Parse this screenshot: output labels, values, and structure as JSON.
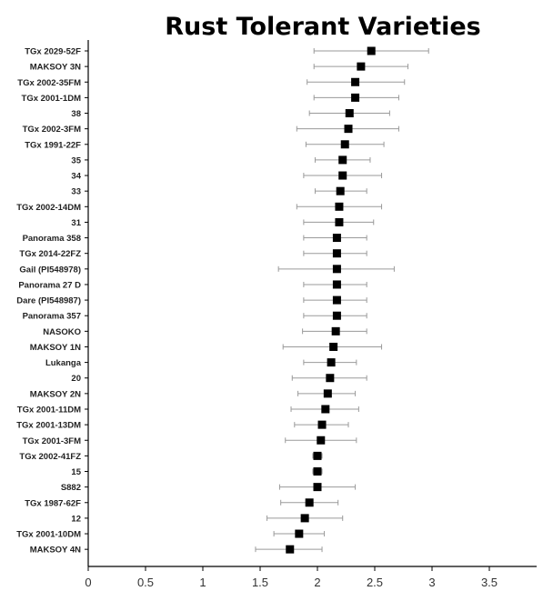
{
  "chart_data": {
    "type": "scatter",
    "title": "Rust Tolerant Varieties",
    "xlabel": "",
    "ylabel": "",
    "xlim": [
      0,
      4
    ],
    "x_ticks": [
      "0",
      "0.5",
      "1",
      "1.5",
      "2",
      "2.5",
      "3",
      "3.5"
    ],
    "grid": false,
    "legend": "none",
    "colors": {
      "marker": "#000000",
      "error_bar": "#9a9a9a",
      "axis": "#000000"
    },
    "categories": [
      "TGx 2029-52F",
      "MAKSOY 3N",
      "TGx 2002-35FM",
      "TGx 2001-1DM",
      "38",
      "TGx 2002-3FM",
      "TGx 1991-22F",
      "35",
      "34",
      "33",
      "TGx 2002-14DM",
      "31",
      "Panorama 358",
      "TGx 2014-22FZ",
      "Gail (PI548978)",
      "Panorama 27 D",
      "Dare (PI548987)",
      "Panorama 357",
      "NASOKO",
      "MAKSOY 1N",
      "Lukanga",
      "20",
      "MAKSOY 2N",
      "TGx 2001-11DM",
      "TGx 2001-13DM",
      "TGx 2001-3FM",
      "TGx 2002-41FZ",
      "15",
      "S882",
      "TGx 1987-62F",
      "12",
      "TGx 2001-10DM",
      "MAKSOY 4N"
    ],
    "values": [
      2.47,
      2.38,
      2.33,
      2.33,
      2.28,
      2.27,
      2.24,
      2.22,
      2.22,
      2.2,
      2.19,
      2.19,
      2.17,
      2.17,
      2.17,
      2.17,
      2.17,
      2.17,
      2.16,
      2.14,
      2.12,
      2.11,
      2.09,
      2.07,
      2.04,
      2.03,
      2.0,
      2.0,
      2.0,
      1.93,
      1.89,
      1.84,
      1.76
    ],
    "error_low": [
      1.97,
      1.97,
      1.91,
      1.97,
      1.93,
      1.82,
      1.9,
      1.98,
      1.88,
      1.98,
      1.82,
      1.88,
      1.88,
      1.88,
      1.66,
      1.88,
      1.88,
      1.88,
      1.87,
      1.7,
      1.88,
      1.78,
      1.83,
      1.77,
      1.8,
      1.72,
      1.96,
      1.96,
      1.67,
      1.68,
      1.56,
      1.62,
      1.46
    ],
    "error_high": [
      2.97,
      2.79,
      2.76,
      2.71,
      2.63,
      2.71,
      2.58,
      2.46,
      2.56,
      2.43,
      2.56,
      2.49,
      2.43,
      2.43,
      2.67,
      2.43,
      2.43,
      2.43,
      2.43,
      2.56,
      2.34,
      2.43,
      2.33,
      2.36,
      2.27,
      2.34,
      2.04,
      2.04,
      2.33,
      2.18,
      2.22,
      2.06,
      2.04
    ]
  }
}
